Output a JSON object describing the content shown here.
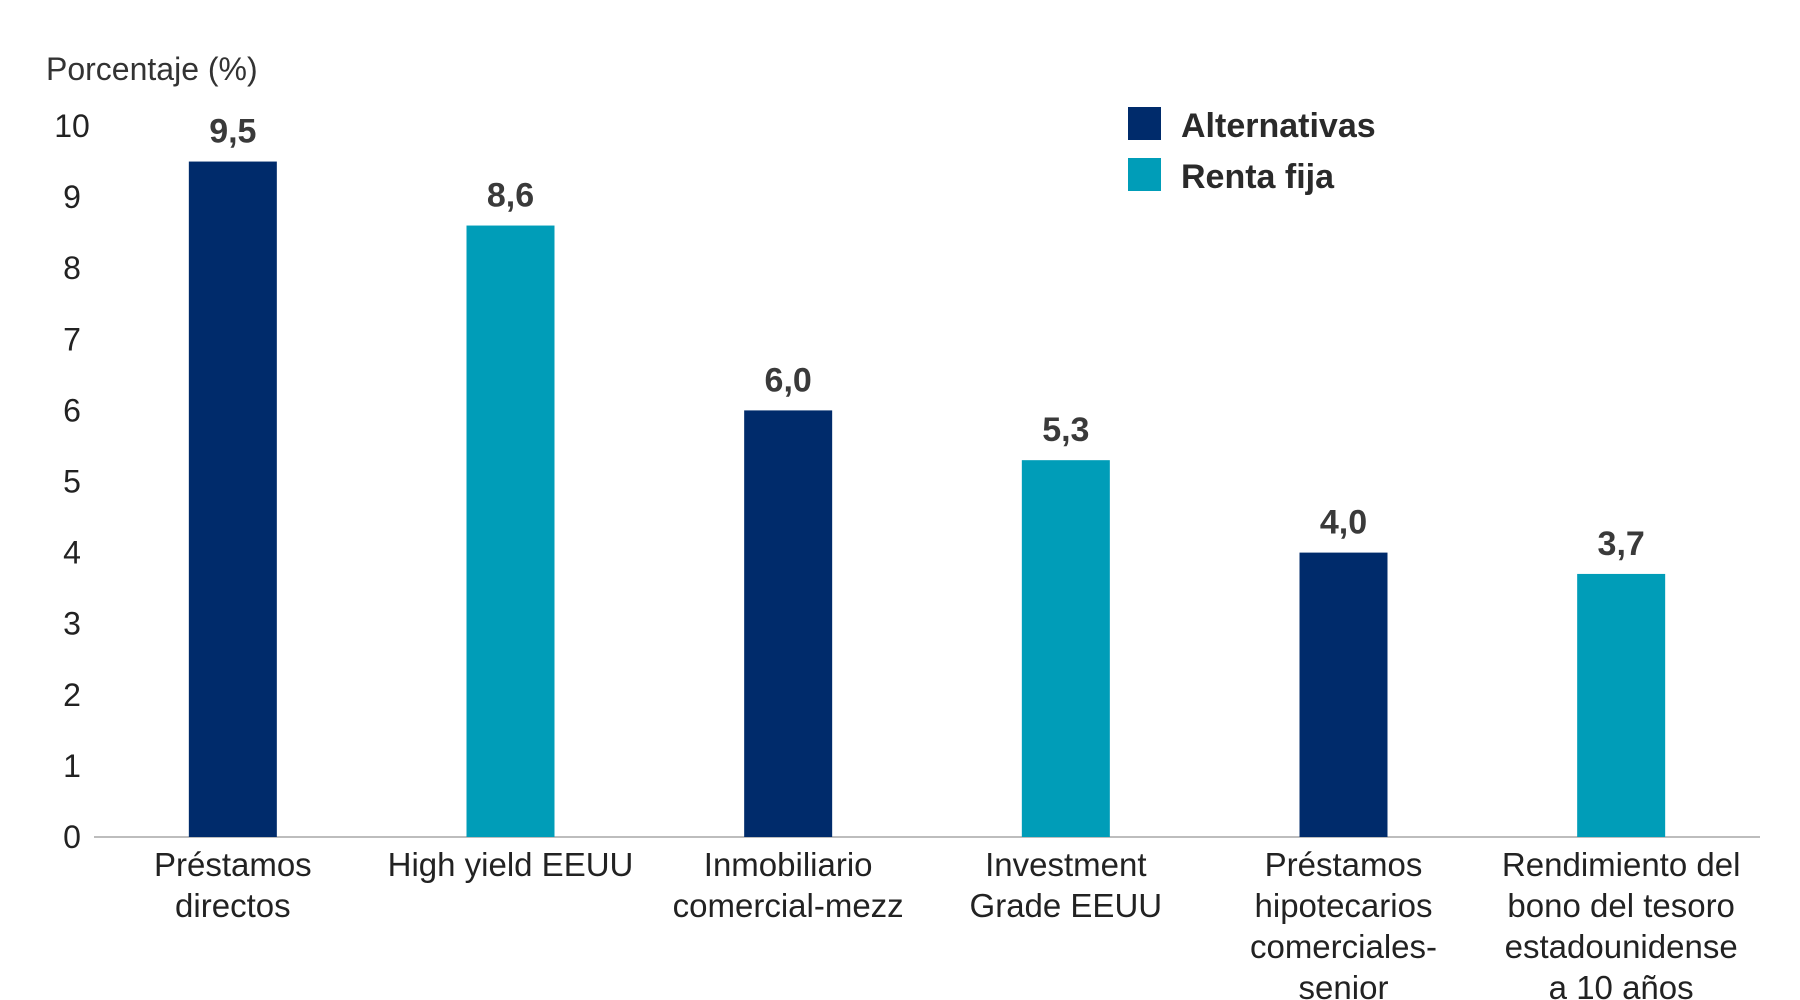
{
  "chart_data": {
    "type": "bar",
    "ylabel": "Porcentaje (%)",
    "ylim": [
      0,
      10
    ],
    "yticks": [
      "0",
      "1",
      "2",
      "3",
      "4",
      "5",
      "6",
      "7",
      "8",
      "9",
      "10"
    ],
    "grid": false,
    "legend_position": "top-right",
    "categories": [
      [
        "Préstamos",
        "directos"
      ],
      [
        "High yield EEUU"
      ],
      [
        "Inmobiliario",
        "comercial-mezz"
      ],
      [
        "Investment",
        "Grade EEUU"
      ],
      [
        "Préstamos",
        "hipotecarios",
        "comerciales-",
        "senior"
      ],
      [
        "Rendimiento del",
        "bono del tesoro",
        "estadounidense",
        "a 10 años"
      ]
    ],
    "values": [
      9.5,
      8.6,
      6.0,
      5.3,
      4.0,
      3.7
    ],
    "value_labels": [
      "9,5",
      "8,6",
      "6,0",
      "5,3",
      "4,0",
      "3,7"
    ],
    "bar_series": [
      0,
      1,
      0,
      1,
      0,
      1
    ],
    "series": [
      {
        "name": "Alternativas",
        "color": "#002b6b"
      },
      {
        "name": "Renta fija",
        "color": "#009db8"
      }
    ]
  }
}
